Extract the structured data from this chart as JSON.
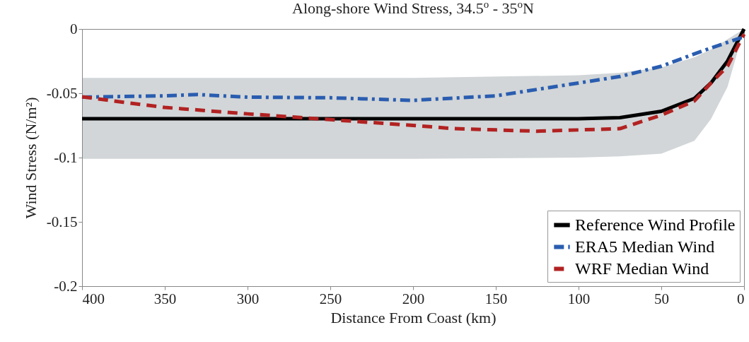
{
  "chart_data": {
    "type": "line",
    "title": "Along-shore Wind Stress, 34.5$^{o}$ - 35$^{o}$N",
    "xlabel": "Distance From Coast (km)",
    "ylabel": "Wind Stress (N/m²)",
    "xlim": [
      400,
      0
    ],
    "xticks": [
      400,
      350,
      300,
      250,
      200,
      150,
      100,
      50,
      0
    ],
    "ylim": [
      -0.2,
      0
    ],
    "yticks": [
      -0.2,
      -0.15,
      -0.1,
      -0.05,
      0
    ],
    "grid": false,
    "legend": "bottom right",
    "marker": "none",
    "series": [
      {
        "name": "Reference Wind Profile",
        "color": "#000000",
        "line_style": "solid",
        "x": [
          400,
          300,
          200,
          100,
          75,
          50,
          30,
          20,
          10,
          0
        ],
        "values": [
          -0.0698,
          -0.0698,
          -0.0698,
          -0.0698,
          -0.069,
          -0.064,
          -0.054,
          -0.042,
          -0.025,
          0
        ],
        "lower": [
          -0.101,
          -0.101,
          -0.101,
          -0.1,
          -0.099,
          -0.097,
          -0.087,
          -0.07,
          -0.045,
          0
        ],
        "upper": [
          -0.038,
          -0.038,
          -0.038,
          -0.036,
          -0.034,
          -0.03,
          -0.022,
          -0.016,
          -0.008,
          0
        ]
      },
      {
        "name": "ERA5 Median Wind",
        "color": "#2a5db0",
        "line_style": "dashdot",
        "x": [
          400,
          350,
          330,
          300,
          250,
          200,
          150,
          125,
          100,
          75,
          50,
          25,
          0
        ],
        "values": [
          -0.053,
          -0.052,
          -0.051,
          -0.053,
          -0.0535,
          -0.0555,
          -0.052,
          -0.047,
          -0.042,
          -0.037,
          -0.029,
          -0.017,
          -0.006
        ]
      },
      {
        "name": "WRF Median Wind",
        "color": "#b22222",
        "line_style": "dashed",
        "x": [
          400,
          375,
          350,
          300,
          250,
          200,
          175,
          150,
          125,
          100,
          75,
          50,
          30,
          20,
          10,
          0
        ],
        "values": [
          -0.0527,
          -0.057,
          -0.061,
          -0.066,
          -0.0705,
          -0.075,
          -0.0775,
          -0.0785,
          -0.0795,
          -0.0785,
          -0.0775,
          -0.067,
          -0.056,
          -0.042,
          -0.029,
          -0.004
        ]
      }
    ]
  }
}
